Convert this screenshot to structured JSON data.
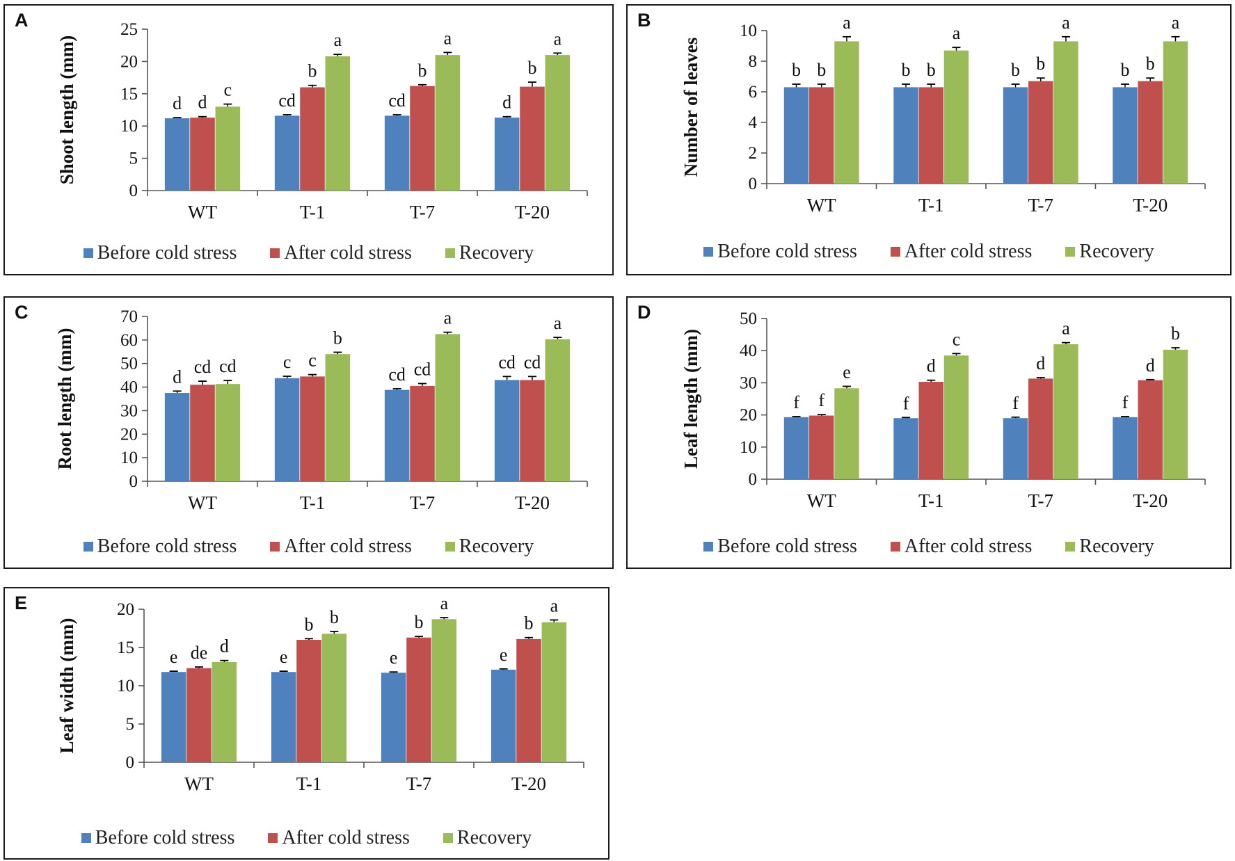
{
  "colors": {
    "before": "#4F81BD",
    "after": "#C0504D",
    "recovery": "#9BBB59"
  },
  "legend": {
    "before": "Before cold stress",
    "after": "After cold stress",
    "recovery": "Recovery"
  },
  "chart_data": [
    {
      "panel": "A",
      "type": "bar",
      "ylabel": "Shoot length (mm)",
      "ylim": [
        0,
        25
      ],
      "yticks": [
        "0",
        "5",
        "10",
        "15",
        "20",
        "25"
      ],
      "categories": [
        "WT",
        "T-1",
        "T-7",
        "T-20"
      ],
      "series": [
        {
          "name": "Before cold stress",
          "values": [
            11.2,
            11.6,
            11.6,
            11.3
          ],
          "errors": [
            0.1,
            0.15,
            0.15,
            0.15
          ]
        },
        {
          "name": "After cold stress",
          "values": [
            11.3,
            16.0,
            16.2,
            16.1
          ],
          "errors": [
            0.15,
            0.3,
            0.2,
            0.7
          ]
        },
        {
          "name": "Recovery",
          "values": [
            13.0,
            20.8,
            21.0,
            21.0
          ],
          "errors": [
            0.4,
            0.3,
            0.4,
            0.3
          ]
        }
      ],
      "labels": [
        [
          "d",
          "d",
          "c"
        ],
        [
          "cd",
          "b",
          "a"
        ],
        [
          "cd",
          "b",
          "a"
        ],
        [
          "d",
          "b",
          "a"
        ]
      ]
    },
    {
      "panel": "B",
      "type": "bar",
      "ylabel": "Number of leaves",
      "ylim": [
        0,
        10
      ],
      "yticks": [
        "0",
        "2",
        "4",
        "6",
        "8",
        "10"
      ],
      "categories": [
        "WT",
        "T-1",
        "T-7",
        "T-20"
      ],
      "series": [
        {
          "name": "Before cold stress",
          "values": [
            6.3,
            6.3,
            6.3,
            6.3
          ],
          "errors": [
            0.2,
            0.2,
            0.2,
            0.2
          ]
        },
        {
          "name": "After cold stress",
          "values": [
            6.3,
            6.3,
            6.7,
            6.7
          ],
          "errors": [
            0.2,
            0.2,
            0.2,
            0.2
          ]
        },
        {
          "name": "Recovery",
          "values": [
            9.3,
            8.7,
            9.3,
            9.3
          ],
          "errors": [
            0.3,
            0.2,
            0.3,
            0.3
          ]
        }
      ],
      "labels": [
        [
          "b",
          "b",
          "a"
        ],
        [
          "b",
          "b",
          "a"
        ],
        [
          "b",
          "b",
          "a"
        ],
        [
          "b",
          "b",
          "a"
        ]
      ]
    },
    {
      "panel": "C",
      "type": "bar",
      "ylabel": "Root  length (mm)",
      "ylim": [
        0,
        70
      ],
      "yticks": [
        "0",
        "10",
        "20",
        "30",
        "40",
        "50",
        "60",
        "70"
      ],
      "categories": [
        "WT",
        "T-1",
        "T-7",
        "T-20"
      ],
      "series": [
        {
          "name": "Before cold stress",
          "values": [
            37.5,
            43.8,
            38.8,
            43.0
          ],
          "errors": [
            0.8,
            0.8,
            0.5,
            1.5
          ]
        },
        {
          "name": "After cold stress",
          "values": [
            41.0,
            44.5,
            40.5,
            43.0
          ],
          "errors": [
            1.5,
            0.8,
            1.0,
            1.5
          ]
        },
        {
          "name": "Recovery",
          "values": [
            41.3,
            54.0,
            62.5,
            60.3
          ],
          "errors": [
            1.5,
            0.8,
            0.8,
            0.8
          ]
        }
      ],
      "labels": [
        [
          "d",
          "cd",
          "cd"
        ],
        [
          "c",
          "c",
          "b"
        ],
        [
          "cd",
          "cd",
          "a"
        ],
        [
          "cd",
          "cd",
          "a"
        ]
      ]
    },
    {
      "panel": "D",
      "type": "bar",
      "ylabel": "Leaf length (mm)",
      "ylim": [
        0,
        50
      ],
      "yticks": [
        "0",
        "10",
        "20",
        "30",
        "40",
        "50"
      ],
      "categories": [
        "WT",
        "T-1",
        "T-7",
        "T-20"
      ],
      "series": [
        {
          "name": "Before cold stress",
          "values": [
            19.3,
            19.0,
            19.0,
            19.3
          ],
          "errors": [
            0.2,
            0.2,
            0.3,
            0.2
          ]
        },
        {
          "name": "After cold stress",
          "values": [
            19.8,
            30.3,
            31.3,
            30.8
          ],
          "errors": [
            0.3,
            0.5,
            0.3,
            0.2
          ]
        },
        {
          "name": "Recovery",
          "values": [
            28.3,
            38.5,
            42.0,
            40.3
          ],
          "errors": [
            0.6,
            0.6,
            0.5,
            0.6
          ]
        }
      ],
      "labels": [
        [
          "f",
          "f",
          "e"
        ],
        [
          "f",
          "d",
          "c"
        ],
        [
          "f",
          "d",
          "a"
        ],
        [
          "f",
          "d",
          "b"
        ]
      ]
    },
    {
      "panel": "E",
      "type": "bar",
      "ylabel": "Leaf width (mm)",
      "ylim": [
        0,
        20
      ],
      "yticks": [
        "0",
        "5",
        "10",
        "15",
        "20"
      ],
      "categories": [
        "WT",
        "T-1",
        "T-7",
        "T-20"
      ],
      "series": [
        {
          "name": "Before cold stress",
          "values": [
            11.8,
            11.8,
            11.7,
            12.1
          ],
          "errors": [
            0.1,
            0.1,
            0.1,
            0.1
          ]
        },
        {
          "name": "After cold stress",
          "values": [
            12.3,
            16.0,
            16.3,
            16.1
          ],
          "errors": [
            0.15,
            0.15,
            0.15,
            0.2
          ]
        },
        {
          "name": "Recovery",
          "values": [
            13.1,
            16.8,
            18.7,
            18.3
          ],
          "errors": [
            0.2,
            0.3,
            0.2,
            0.3
          ]
        }
      ],
      "labels": [
        [
          "e",
          "de",
          "d"
        ],
        [
          "e",
          "b",
          "b"
        ],
        [
          "e",
          "b",
          "a"
        ],
        [
          "e",
          "b",
          "a"
        ]
      ]
    }
  ]
}
